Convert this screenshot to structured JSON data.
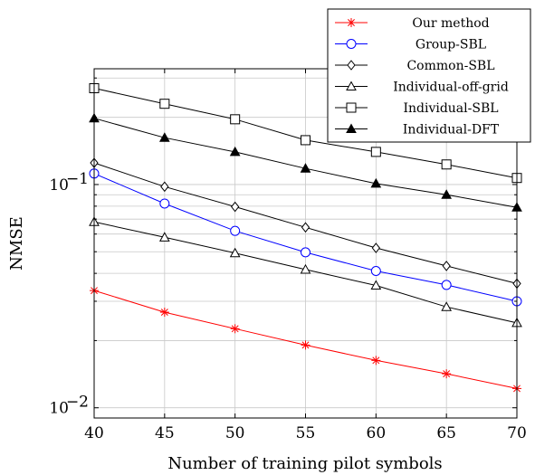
{
  "chart_data": {
    "type": "line",
    "title": "",
    "xlabel": "Number of training pilot symbols",
    "ylabel": "NMSE",
    "yscale": "log",
    "xlim": [
      40,
      70
    ],
    "ylim": [
      0.009,
      0.33
    ],
    "grid": true,
    "legend_position": "top-right",
    "x": [
      40,
      45,
      50,
      55,
      60,
      65,
      70
    ],
    "x_ticks": [
      "40",
      "45",
      "50",
      "55",
      "60",
      "65",
      "70"
    ],
    "y_ticks": [
      {
        "value": 0.01,
        "base": "10",
        "exp": "−2"
      },
      {
        "value": 0.1,
        "base": "10",
        "exp": "−1"
      }
    ],
    "series": [
      {
        "name": "Our method",
        "color": "#ff0000",
        "marker": "star",
        "values": [
          0.0335,
          0.0268,
          0.0226,
          0.0191,
          0.0163,
          0.0142,
          0.0122
        ]
      },
      {
        "name": "Group-SBL",
        "color": "#0000ff",
        "marker": "circle",
        "values": [
          0.112,
          0.0822,
          0.062,
          0.0497,
          0.041,
          0.0355,
          0.03
        ]
      },
      {
        "name": "Common-SBL",
        "color": "#000000",
        "marker": "diamond",
        "values": [
          0.125,
          0.0978,
          0.0795,
          0.0643,
          0.052,
          0.0432,
          0.036
        ]
      },
      {
        "name": "Individual-off-grid",
        "color": "#000000",
        "marker": "triangle-open",
        "values": [
          0.068,
          0.058,
          0.0493,
          0.0416,
          0.0353,
          0.0283,
          0.024
        ]
      },
      {
        "name": "Individual-SBL",
        "color": "#000000",
        "marker": "square",
        "values": [
          0.27,
          0.23,
          0.196,
          0.158,
          0.14,
          0.123,
          0.107
        ]
      },
      {
        "name": "Individual-DFT",
        "color": "#000000",
        "marker": "triangle-filled",
        "values": [
          0.198,
          0.162,
          0.14,
          0.118,
          0.101,
          0.09,
          0.079
        ]
      }
    ]
  }
}
